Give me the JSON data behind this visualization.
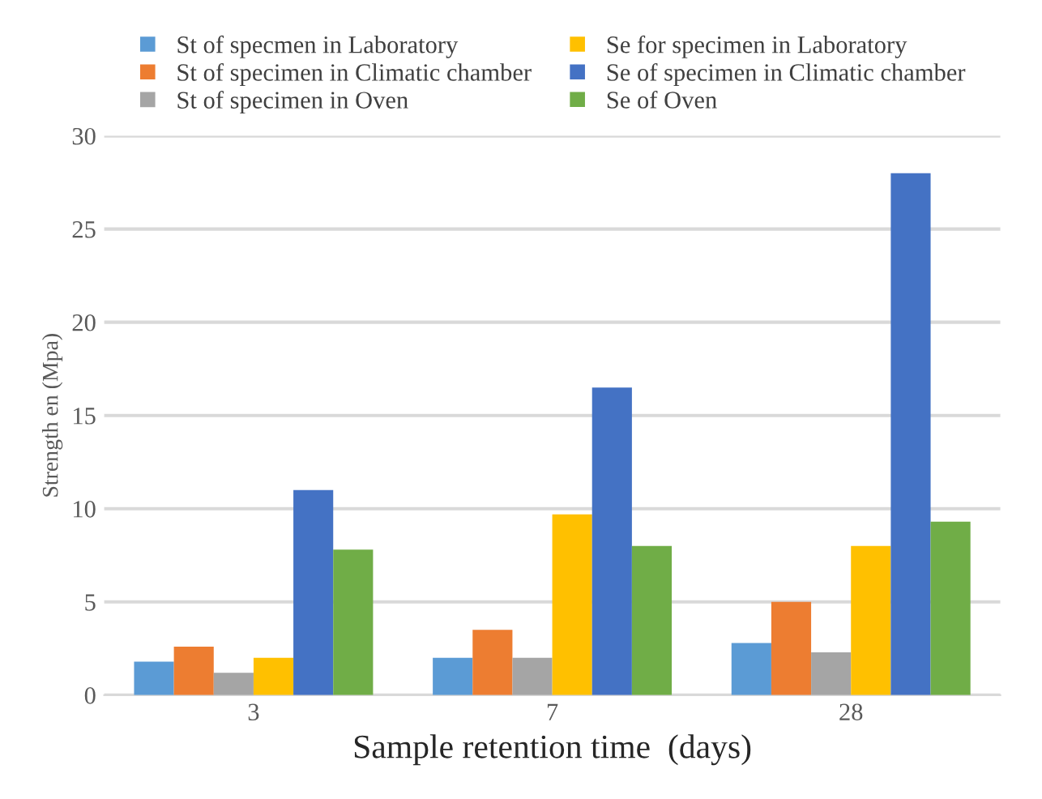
{
  "chart_data": {
    "type": "bar",
    "xlabel": "Sample retention time  (days)",
    "ylabel": "Strength en (Mpa)",
    "categories": [
      "3",
      "7",
      "28"
    ],
    "series": [
      {
        "name": "St of specmen in Laboratory",
        "color": "#5b9bd5",
        "values": [
          1.8,
          2.0,
          2.8
        ]
      },
      {
        "name": "St of specimen in Climatic chamber",
        "color": "#ed7d31",
        "values": [
          2.6,
          3.5,
          5.0
        ]
      },
      {
        "name": "St of specimen in Oven",
        "color": "#a5a5a5",
        "values": [
          1.2,
          2.0,
          2.3
        ]
      },
      {
        "name": "Se for specimen in Laboratory",
        "color": "#ffc000",
        "values": [
          2.0,
          9.7,
          8.0
        ]
      },
      {
        "name": "Se of specimen in Climatic chamber",
        "color": "#4472c4",
        "values": [
          11.0,
          16.5,
          28.0
        ]
      },
      {
        "name": "Se of Oven",
        "color": "#70ad47",
        "values": [
          7.8,
          8.0,
          9.3
        ]
      }
    ],
    "ylim": [
      0,
      30
    ],
    "yticks": [
      0,
      5,
      10,
      15,
      20,
      25,
      30
    ],
    "grid": "y",
    "legend": "top"
  }
}
